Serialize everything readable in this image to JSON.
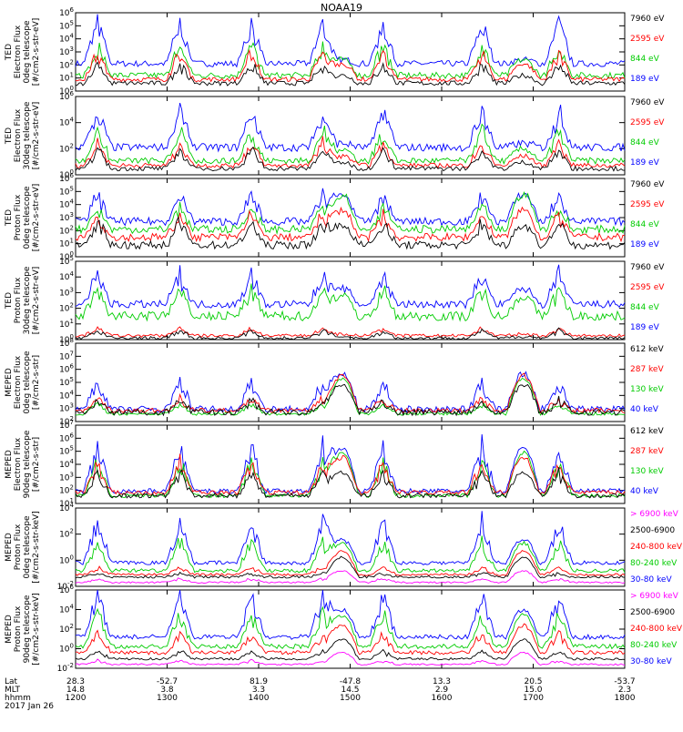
{
  "title": "NOAA19",
  "panels": [
    {
      "ylabel": [
        "TED",
        "Electron Flux",
        "0deg telescope",
        "[#/cm2-s-str-eV]"
      ],
      "yticks": [
        "10^6",
        "10^5",
        "10^4",
        "10^3",
        "10^2",
        "10^1",
        "10^0"
      ],
      "legend": [
        {
          "label": "7960 eV",
          "color": "#000000"
        },
        {
          "label": "2595 eV",
          "color": "#ff0000"
        },
        {
          "label": "844 eV",
          "color": "#00cc00"
        },
        {
          "label": "189 eV",
          "color": "#0000ff"
        }
      ]
    },
    {
      "ylabel": [
        "TED",
        "Electron Flux",
        "30deg telescope",
        "[#/cm2-s-str-eV]"
      ],
      "yticks": [
        "10^6",
        "10^4",
        "10^2",
        "10^0"
      ],
      "legend": [
        {
          "label": "7960 eV",
          "color": "#000000"
        },
        {
          "label": "2595 eV",
          "color": "#ff0000"
        },
        {
          "label": "844 eV",
          "color": "#00cc00"
        },
        {
          "label": "189 eV",
          "color": "#0000ff"
        }
      ]
    },
    {
      "ylabel": [
        "TED",
        "Proton Flux",
        "0deg telescope",
        "[#/cm2-s-str-eV]"
      ],
      "yticks": [
        "10^6",
        "10^5",
        "10^4",
        "10^3",
        "10^2",
        "10^1",
        "10^0"
      ],
      "legend": [
        {
          "label": "7960 eV",
          "color": "#000000"
        },
        {
          "label": "2595 eV",
          "color": "#ff0000"
        },
        {
          "label": "844 eV",
          "color": "#00cc00"
        },
        {
          "label": "189 eV",
          "color": "#0000ff"
        }
      ]
    },
    {
      "ylabel": [
        "TED",
        "Proton Flux",
        "30deg telescope",
        "[#/cm2-s-str-eV]"
      ],
      "yticks": [
        "10^5",
        "10^4",
        "10^3",
        "10^2",
        "10^1",
        "10^0"
      ],
      "legend": [
        {
          "label": "7960 eV",
          "color": "#000000"
        },
        {
          "label": "2595 eV",
          "color": "#ff0000"
        },
        {
          "label": "844 eV",
          "color": "#00cc00"
        },
        {
          "label": "189 eV",
          "color": "#0000ff"
        }
      ]
    },
    {
      "ylabel": [
        "MEPED",
        "Electron Flux",
        "0deg telescope",
        "[#/cm2-s-str]"
      ],
      "yticks": [
        "10^8",
        "10^7",
        "10^6",
        "10^5",
        "10^4",
        "10^3",
        "10^2"
      ],
      "legend": [
        {
          "label": "612 keV",
          "color": "#000000"
        },
        {
          "label": "287 keV",
          "color": "#ff0000"
        },
        {
          "label": "130 keV",
          "color": "#00cc00"
        },
        {
          "label": "40 keV",
          "color": "#0000ff"
        }
      ]
    },
    {
      "ylabel": [
        "MEPED",
        "Electron Flux",
        "90deg telescope",
        "[#/cm2-s-str]"
      ],
      "yticks": [
        "10^7",
        "10^6",
        "10^5",
        "10^4",
        "10^3",
        "10^2",
        "10^1"
      ],
      "legend": [
        {
          "label": "612 keV",
          "color": "#000000"
        },
        {
          "label": "287 keV",
          "color": "#ff0000"
        },
        {
          "label": "130 keV",
          "color": "#00cc00"
        },
        {
          "label": "40 keV",
          "color": "#0000ff"
        }
      ]
    },
    {
      "ylabel": [
        "MEPED",
        "Proton Flux",
        "0deg telescope",
        "[#/cm2-s-str-keV]"
      ],
      "yticks": [
        "10^4",
        "10^2",
        "10^0",
        "10^-2"
      ],
      "legend": [
        {
          "label": "> 6900 keV",
          "color": "#ff00ff"
        },
        {
          "label": "2500-6900",
          "color": "#000000"
        },
        {
          "label": "240-800 keV",
          "color": "#ff0000"
        },
        {
          "label": "80-240 keV",
          "color": "#00cc00"
        },
        {
          "label": "30-80 keV",
          "color": "#0000ff"
        }
      ]
    },
    {
      "ylabel": [
        "MEPED",
        "Proton Flux",
        "90deg telescope",
        "[#/cm2-s-str-keV]"
      ],
      "yticks": [
        "10^6",
        "10^4",
        "10^2",
        "10^0",
        "10^-2"
      ],
      "legend": [
        {
          "label": "> 6900 keV",
          "color": "#ff00ff"
        },
        {
          "label": "2500-6900",
          "color": "#000000"
        },
        {
          "label": "240-800 keV",
          "color": "#ff0000"
        },
        {
          "label": "80-240 keV",
          "color": "#00cc00"
        },
        {
          "label": "30-80 keV",
          "color": "#0000ff"
        }
      ]
    }
  ],
  "footer": {
    "row_labels": [
      "Lat",
      "MLT",
      "hhmm"
    ],
    "date": "2017 Jan 26",
    "columns": [
      {
        "lat": "28.3",
        "mlt": "14.8",
        "hhmm": "1200"
      },
      {
        "lat": "-52.7",
        "mlt": "3.8",
        "hhmm": "1300"
      },
      {
        "lat": "81.9",
        "mlt": "3.3",
        "hhmm": "1400"
      },
      {
        "lat": "-47.8",
        "mlt": "14.5",
        "hhmm": "1500"
      },
      {
        "lat": "13.3",
        "mlt": "2.9",
        "hhmm": "1600"
      },
      {
        "lat": "20.5",
        "mlt": "15.0",
        "hhmm": "1700"
      },
      {
        "lat": "-53.7",
        "mlt": "2.3",
        "hhmm": "1800"
      }
    ]
  },
  "chart_data": {
    "type": "line",
    "title": "NOAA19",
    "x_axis": {
      "label": "hhmm",
      "ticks": [
        "1200",
        "1300",
        "1400",
        "1500",
        "1600",
        "1700",
        "1800"
      ]
    },
    "grid": false,
    "legend_placement": "right of each panel",
    "log_scale_y": true,
    "panels": [
      {
        "ylabel": "TED Electron Flux 0deg telescope [#/cm2-s-str-eV]",
        "series": [
          "7960 eV",
          "2595 eV",
          "844 eV",
          "189 eV"
        ]
      },
      {
        "ylabel": "TED Electron Flux 30deg telescope [#/cm2-s-str-eV]",
        "series": [
          "7960 eV",
          "2595 eV",
          "844 eV",
          "189 eV"
        ]
      },
      {
        "ylabel": "TED Proton Flux 0deg telescope [#/cm2-s-str-eV]",
        "series": [
          "7960 eV",
          "2595 eV",
          "844 eV",
          "189 eV"
        ]
      },
      {
        "ylabel": "TED Proton Flux 30deg telescope [#/cm2-s-str-eV]",
        "series": [
          "7960 eV",
          "2595 eV",
          "844 eV",
          "189 eV"
        ]
      },
      {
        "ylabel": "MEPED Electron Flux 0deg telescope [#/cm2-s-str]",
        "series": [
          "612 keV",
          "287 keV",
          "130 keV",
          "40 keV"
        ]
      },
      {
        "ylabel": "MEPED Electron Flux 90deg telescope [#/cm2-s-str]",
        "series": [
          "612 keV",
          "287 keV",
          "130 keV",
          "40 keV"
        ]
      },
      {
        "ylabel": "MEPED Proton Flux 0deg telescope [#/cm2-s-str-keV]",
        "series": [
          "> 6900 keV",
          "2500-6900",
          "240-800 keV",
          "80-240 keV",
          "30-80 keV"
        ]
      },
      {
        "ylabel": "MEPED Proton Flux 90deg telescope [#/cm2-s-str-keV]",
        "series": [
          "> 6900 keV",
          "2500-6900",
          "240-800 keV",
          "80-240 keV",
          "30-80 keV"
        ]
      }
    ]
  }
}
